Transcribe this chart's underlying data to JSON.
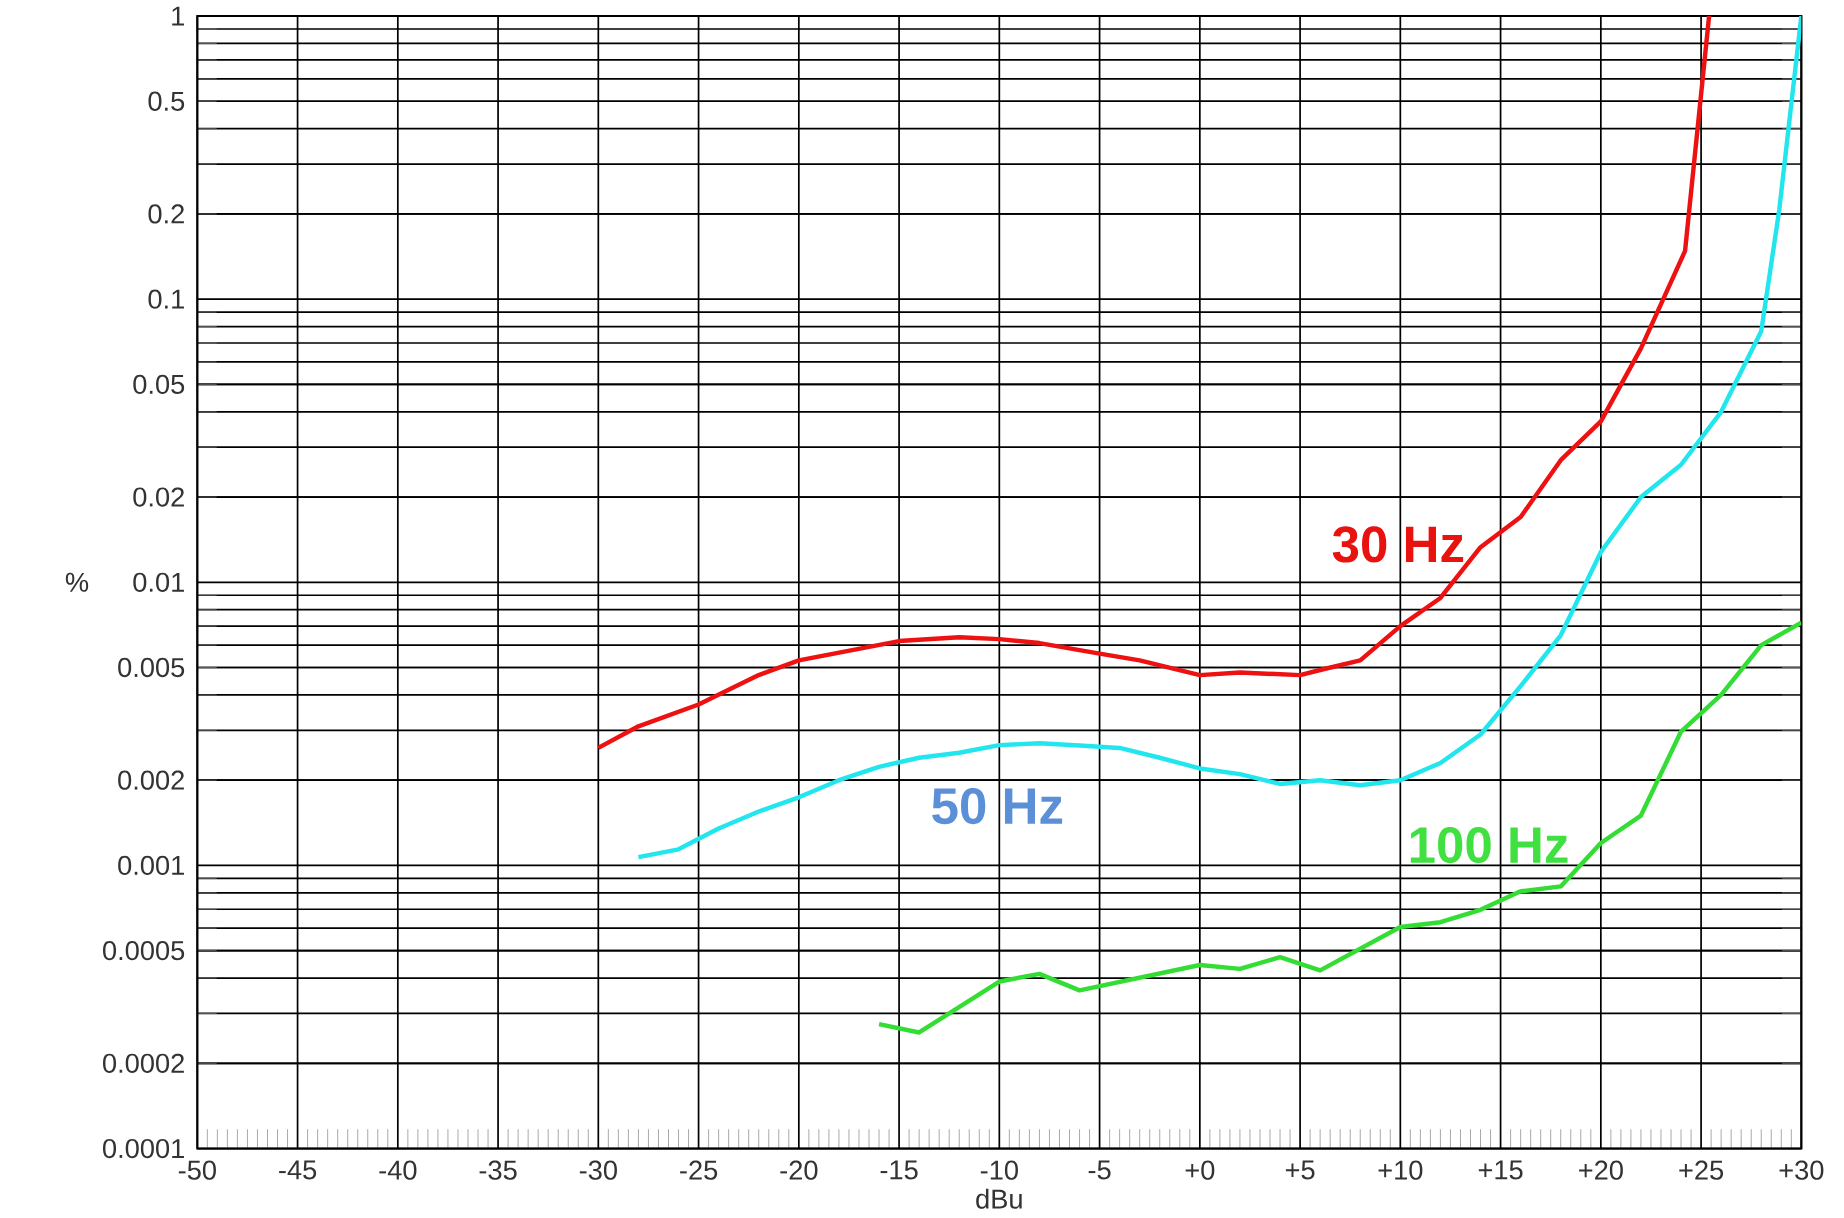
{
  "chart_data": {
    "type": "line",
    "xlabel": "dBu",
    "ylabel": "%",
    "log": "y",
    "grid": true,
    "xlim": [
      -50,
      30
    ],
    "xticks": [
      -50,
      -45,
      -40,
      -35,
      -30,
      -25,
      -20,
      -15,
      -10,
      -5,
      {
        "value": 0,
        "label": "+0"
      },
      {
        "value": 5,
        "label": "+5"
      },
      {
        "value": 10,
        "label": "+10"
      },
      {
        "value": 15,
        "label": "+15"
      },
      {
        "value": 20,
        "label": "+20"
      },
      {
        "value": 25,
        "label": "+25"
      },
      {
        "value": 30,
        "label": "+30"
      }
    ],
    "ylim": [
      0.0001,
      1
    ],
    "yticks": [
      0.0001,
      0.0002,
      0.0005,
      0.001,
      0.002,
      0.005,
      0.01,
      0.02,
      0.05,
      0.1,
      0.2,
      0.5,
      1
    ],
    "series": [
      {
        "name": "30 Hz",
        "color": "#ee1111",
        "x": [
          -30,
          -28,
          -25,
          -22,
          -20,
          -15,
          -12,
          -10,
          -8,
          -5,
          -3,
          0,
          2,
          5,
          6,
          8,
          10,
          12,
          14,
          16,
          18,
          20,
          22,
          24.2,
          25.4
        ],
        "values": [
          0.0026,
          0.0031,
          0.0037,
          0.0047,
          0.0053,
          0.0062,
          0.0064,
          0.0063,
          0.0061,
          0.0056,
          0.0053,
          0.0047,
          0.0048,
          0.0047,
          0.0049,
          0.0053,
          0.007,
          0.0088,
          0.0133,
          0.017,
          0.027,
          0.037,
          0.067,
          0.148,
          1
        ]
      },
      {
        "name": "50 Hz",
        "color": "#22e6ee",
        "x": [
          -28,
          -26,
          -24,
          -22,
          -20,
          -18,
          -16,
          -14,
          -12,
          -10,
          -8,
          -6,
          -4,
          -2,
          0,
          2,
          4,
          6,
          8,
          10,
          12,
          14,
          16,
          18,
          20,
          22,
          24,
          26,
          28,
          28.9,
          30
        ],
        "values": [
          0.00107,
          0.00114,
          0.00135,
          0.00155,
          0.00174,
          0.002,
          0.00223,
          0.0024,
          0.0025,
          0.00266,
          0.0027,
          0.00265,
          0.0026,
          0.0024,
          0.0022,
          0.0021,
          0.00194,
          0.002,
          0.00192,
          0.002,
          0.0023,
          0.0029,
          0.0043,
          0.0065,
          0.0128,
          0.02,
          0.026,
          0.04,
          0.077,
          0.207,
          1
        ]
      },
      {
        "name": "100 Hz",
        "color": "#33dd33",
        "x": [
          -16,
          -14,
          -10,
          -8,
          -6,
          0,
          2,
          4,
          6,
          10,
          12,
          14,
          16,
          18,
          20,
          22,
          24,
          26,
          28,
          30
        ],
        "values": [
          0.000275,
          0.000257,
          0.000389,
          0.000414,
          0.000362,
          0.000445,
          0.000431,
          0.000474,
          0.000426,
          0.000606,
          0.00063,
          0.000697,
          0.00081,
          0.000843,
          0.0012,
          0.0015,
          0.00297,
          0.004,
          0.006,
          0.0072
        ]
      }
    ]
  }
}
